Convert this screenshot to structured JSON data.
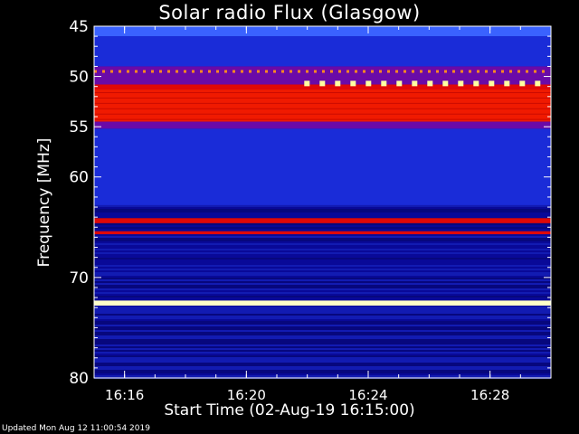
{
  "chart_data": {
    "type": "heatmap",
    "title": "Solar radio Flux (Glasgow)",
    "ylabel": "Frequency [MHz]",
    "xlabel": "Start Time (02-Aug-19 16:15:00)",
    "ylim": [
      80,
      45
    ],
    "xlim_minutes_from_start": [
      0,
      15
    ],
    "yticks": [
      45,
      50,
      55,
      60,
      70,
      80
    ],
    "xticks": [
      "16:16",
      "16:20",
      "16:24",
      "16:28"
    ],
    "xtick_minutes_from_start": [
      1,
      5,
      9,
      13
    ],
    "bands": [
      {
        "from_mhz": 45,
        "to_mhz": 46.0,
        "level": "light-blue"
      },
      {
        "from_mhz": 46.0,
        "to_mhz": 49.0,
        "level": "blue"
      },
      {
        "from_mhz": 49.0,
        "to_mhz": 50.8,
        "level": "purple"
      },
      {
        "from_mhz": 50.8,
        "to_mhz": 51.3,
        "level": "red"
      },
      {
        "from_mhz": 51.3,
        "to_mhz": 54.5,
        "level": "red-intense"
      },
      {
        "from_mhz": 54.5,
        "to_mhz": 55.2,
        "level": "purple"
      },
      {
        "from_mhz": 55.2,
        "to_mhz": 62.8,
        "level": "blue"
      },
      {
        "from_mhz": 64.1,
        "to_mhz": 64.6,
        "level": "red"
      },
      {
        "from_mhz": 65.4,
        "to_mhz": 65.7,
        "level": "red"
      },
      {
        "from_mhz": 72.3,
        "to_mhz": 72.8,
        "level": "yellow-white"
      }
    ],
    "periodic_markers": [
      {
        "freq_mhz": 49.5,
        "start_min": 0,
        "end_min": 15,
        "color": "orange"
      },
      {
        "freq_mhz": 50.7,
        "start_min": 6.9,
        "end_min": 15,
        "color": "yellow"
      }
    ],
    "colors": {
      "background": "#000000",
      "low": "#00008c",
      "mid": "#2438ff",
      "high": "#ff0a00",
      "peak": "#ffffd0"
    }
  },
  "footer": "Updated Mon Aug 12 11:00:54 2019"
}
